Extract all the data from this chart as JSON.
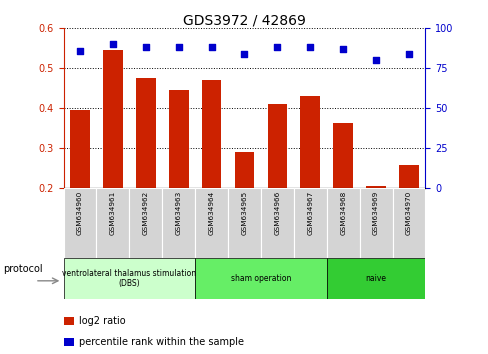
{
  "title": "GDS3972 / 42869",
  "samples": [
    "GSM634960",
    "GSM634961",
    "GSM634962",
    "GSM634963",
    "GSM634964",
    "GSM634965",
    "GSM634966",
    "GSM634967",
    "GSM634968",
    "GSM634969",
    "GSM634970"
  ],
  "log2_ratio": [
    0.395,
    0.545,
    0.475,
    0.445,
    0.47,
    0.29,
    0.41,
    0.43,
    0.363,
    0.205,
    0.258
  ],
  "percentile_rank": [
    86,
    90,
    88,
    88,
    88,
    84,
    88,
    88,
    87,
    80,
    84
  ],
  "bar_color": "#cc2200",
  "dot_color": "#0000cc",
  "ylim_left": [
    0.2,
    0.6
  ],
  "ylim_right": [
    0,
    100
  ],
  "yticks_left": [
    0.2,
    0.3,
    0.4,
    0.5,
    0.6
  ],
  "yticks_right": [
    0,
    25,
    50,
    75,
    100
  ],
  "groups": [
    {
      "label": "ventrolateral thalamus stimulation\n(DBS)",
      "start": 0,
      "end": 3,
      "color": "#ccffcc"
    },
    {
      "label": "sham operation",
      "start": 4,
      "end": 7,
      "color": "#66ee66"
    },
    {
      "label": "naive",
      "start": 8,
      "end": 10,
      "color": "#33cc33"
    }
  ],
  "legend_bar_label": "log2 ratio",
  "legend_dot_label": "percentile rank within the sample",
  "protocol_label": "protocol"
}
